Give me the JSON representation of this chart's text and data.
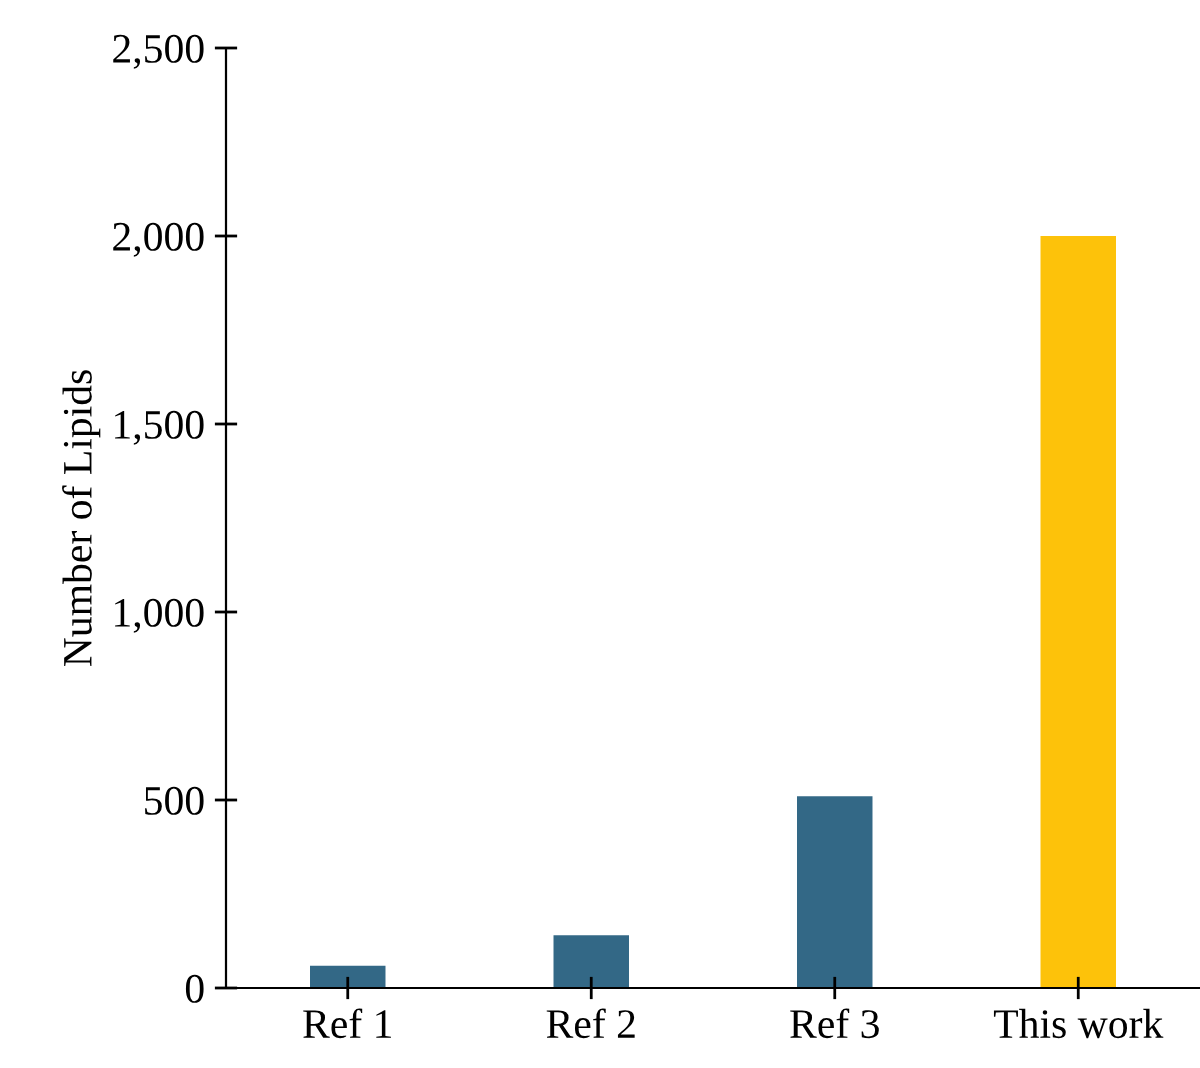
{
  "chart_data": {
    "type": "bar",
    "ylabel": "Number of Lipids",
    "categories": [
      "Ref 1",
      "Ref 2",
      "Ref 3",
      "This work"
    ],
    "values": [
      59,
      140,
      510,
      2000
    ],
    "colors": [
      "#336886",
      "#336886",
      "#336886",
      "#fdc20a"
    ],
    "ylim": [
      0,
      2500
    ],
    "yticks": [
      {
        "value": 0,
        "label": "0"
      },
      {
        "value": 500,
        "label": "500"
      },
      {
        "value": 1000,
        "label": "1,000"
      },
      {
        "value": 1500,
        "label": "1,500"
      },
      {
        "value": 2000,
        "label": "2,000"
      },
      {
        "value": 2500,
        "label": "2,500"
      }
    ],
    "grid": false
  }
}
